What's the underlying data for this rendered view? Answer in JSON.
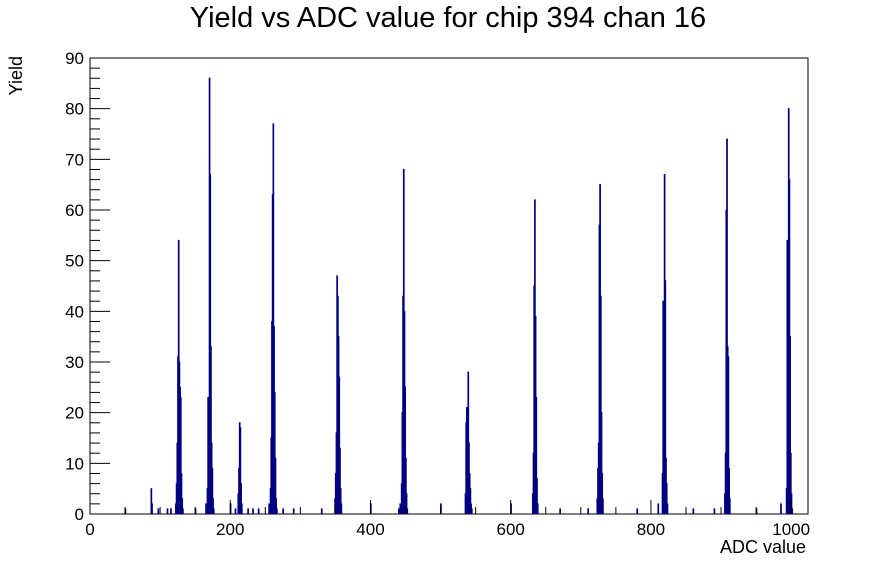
{
  "chart_data": {
    "type": "bar",
    "title": "Yield vs ADC value for chip 394 chan 16",
    "xlabel": "ADC value",
    "ylabel": "Yield",
    "xlim": [
      0,
      1024
    ],
    "ylim": [
      0,
      90
    ],
    "xticks": [
      "0",
      "200",
      "400",
      "600",
      "800",
      "1000"
    ],
    "yticks": [
      "0",
      "10",
      "20",
      "30",
      "40",
      "50",
      "60",
      "70",
      "80",
      "90"
    ],
    "line_color": "#000080",
    "grid": false,
    "legend": "none",
    "bins": [
      {
        "x": 50,
        "y": 1
      },
      {
        "x": 87,
        "y": 5
      },
      {
        "x": 88,
        "y": 2
      },
      {
        "x": 97,
        "y": 1
      },
      {
        "x": 110,
        "y": 1
      },
      {
        "x": 115,
        "y": 1
      },
      {
        "x": 122,
        "y": 2
      },
      {
        "x": 123,
        "y": 6
      },
      {
        "x": 124,
        "y": 14
      },
      {
        "x": 125,
        "y": 31
      },
      {
        "x": 126,
        "y": 54
      },
      {
        "x": 127,
        "y": 30
      },
      {
        "x": 128,
        "y": 25
      },
      {
        "x": 129,
        "y": 23
      },
      {
        "x": 130,
        "y": 8
      },
      {
        "x": 131,
        "y": 3
      },
      {
        "x": 132,
        "y": 1
      },
      {
        "x": 150,
        "y": 1
      },
      {
        "x": 165,
        "y": 2
      },
      {
        "x": 167,
        "y": 5
      },
      {
        "x": 168,
        "y": 23
      },
      {
        "x": 169,
        "y": 13
      },
      {
        "x": 170,
        "y": 86
      },
      {
        "x": 171,
        "y": 67
      },
      {
        "x": 172,
        "y": 33
      },
      {
        "x": 173,
        "y": 14
      },
      {
        "x": 174,
        "y": 9
      },
      {
        "x": 175,
        "y": 3
      },
      {
        "x": 176,
        "y": 1
      },
      {
        "x": 200,
        "y": 2
      },
      {
        "x": 207,
        "y": 1
      },
      {
        "x": 211,
        "y": 4
      },
      {
        "x": 212,
        "y": 9
      },
      {
        "x": 213,
        "y": 18
      },
      {
        "x": 214,
        "y": 17
      },
      {
        "x": 215,
        "y": 6
      },
      {
        "x": 216,
        "y": 2
      },
      {
        "x": 225,
        "y": 1
      },
      {
        "x": 232,
        "y": 1
      },
      {
        "x": 240,
        "y": 1
      },
      {
        "x": 255,
        "y": 2
      },
      {
        "x": 257,
        "y": 5
      },
      {
        "x": 258,
        "y": 15
      },
      {
        "x": 259,
        "y": 38
      },
      {
        "x": 260,
        "y": 63
      },
      {
        "x": 261,
        "y": 77
      },
      {
        "x": 262,
        "y": 37
      },
      {
        "x": 263,
        "y": 24
      },
      {
        "x": 264,
        "y": 11
      },
      {
        "x": 265,
        "y": 3
      },
      {
        "x": 266,
        "y": 1
      },
      {
        "x": 275,
        "y": 1
      },
      {
        "x": 290,
        "y": 1
      },
      {
        "x": 330,
        "y": 1
      },
      {
        "x": 349,
        "y": 3
      },
      {
        "x": 350,
        "y": 8
      },
      {
        "x": 351,
        "y": 16
      },
      {
        "x": 352,
        "y": 47
      },
      {
        "x": 353,
        "y": 43
      },
      {
        "x": 354,
        "y": 35
      },
      {
        "x": 355,
        "y": 27
      },
      {
        "x": 356,
        "y": 13
      },
      {
        "x": 357,
        "y": 5
      },
      {
        "x": 358,
        "y": 2
      },
      {
        "x": 400,
        "y": 2
      },
      {
        "x": 440,
        "y": 1
      },
      {
        "x": 442,
        "y": 2
      },
      {
        "x": 444,
        "y": 6
      },
      {
        "x": 445,
        "y": 20
      },
      {
        "x": 446,
        "y": 43
      },
      {
        "x": 447,
        "y": 68
      },
      {
        "x": 448,
        "y": 40
      },
      {
        "x": 449,
        "y": 25
      },
      {
        "x": 450,
        "y": 11
      },
      {
        "x": 451,
        "y": 4
      },
      {
        "x": 452,
        "y": 1
      },
      {
        "x": 500,
        "y": 2
      },
      {
        "x": 535,
        "y": 4
      },
      {
        "x": 536,
        "y": 18
      },
      {
        "x": 537,
        "y": 21
      },
      {
        "x": 538,
        "y": 11
      },
      {
        "x": 539,
        "y": 28
      },
      {
        "x": 540,
        "y": 14
      },
      {
        "x": 541,
        "y": 8
      },
      {
        "x": 542,
        "y": 5
      },
      {
        "x": 543,
        "y": 2
      },
      {
        "x": 544,
        "y": 1
      },
      {
        "x": 600,
        "y": 2
      },
      {
        "x": 631,
        "y": 4
      },
      {
        "x": 632,
        "y": 12
      },
      {
        "x": 633,
        "y": 45
      },
      {
        "x": 634,
        "y": 62
      },
      {
        "x": 635,
        "y": 39
      },
      {
        "x": 636,
        "y": 23
      },
      {
        "x": 637,
        "y": 7
      },
      {
        "x": 638,
        "y": 2
      },
      {
        "x": 670,
        "y": 1
      },
      {
        "x": 710,
        "y": 1
      },
      {
        "x": 723,
        "y": 3
      },
      {
        "x": 724,
        "y": 9
      },
      {
        "x": 725,
        "y": 14
      },
      {
        "x": 726,
        "y": 57
      },
      {
        "x": 727,
        "y": 65
      },
      {
        "x": 728,
        "y": 43
      },
      {
        "x": 729,
        "y": 20
      },
      {
        "x": 730,
        "y": 8
      },
      {
        "x": 731,
        "y": 3
      },
      {
        "x": 780,
        "y": 1
      },
      {
        "x": 810,
        "y": 2
      },
      {
        "x": 816,
        "y": 8
      },
      {
        "x": 817,
        "y": 42
      },
      {
        "x": 818,
        "y": 33
      },
      {
        "x": 819,
        "y": 67
      },
      {
        "x": 820,
        "y": 46
      },
      {
        "x": 821,
        "y": 11
      },
      {
        "x": 822,
        "y": 6
      },
      {
        "x": 823,
        "y": 2
      },
      {
        "x": 860,
        "y": 1
      },
      {
        "x": 890,
        "y": 1
      },
      {
        "x": 905,
        "y": 4
      },
      {
        "x": 906,
        "y": 12
      },
      {
        "x": 907,
        "y": 60
      },
      {
        "x": 908,
        "y": 74
      },
      {
        "x": 909,
        "y": 33
      },
      {
        "x": 910,
        "y": 31
      },
      {
        "x": 911,
        "y": 9
      },
      {
        "x": 912,
        "y": 3
      },
      {
        "x": 950,
        "y": 1
      },
      {
        "x": 985,
        "y": 2
      },
      {
        "x": 993,
        "y": 5
      },
      {
        "x": 994,
        "y": 54
      },
      {
        "x": 995,
        "y": 39
      },
      {
        "x": 996,
        "y": 80
      },
      {
        "x": 997,
        "y": 66
      },
      {
        "x": 998,
        "y": 35
      },
      {
        "x": 999,
        "y": 12
      },
      {
        "x": 1000,
        "y": 4
      },
      {
        "x": 1001,
        "y": 1
      }
    ]
  }
}
